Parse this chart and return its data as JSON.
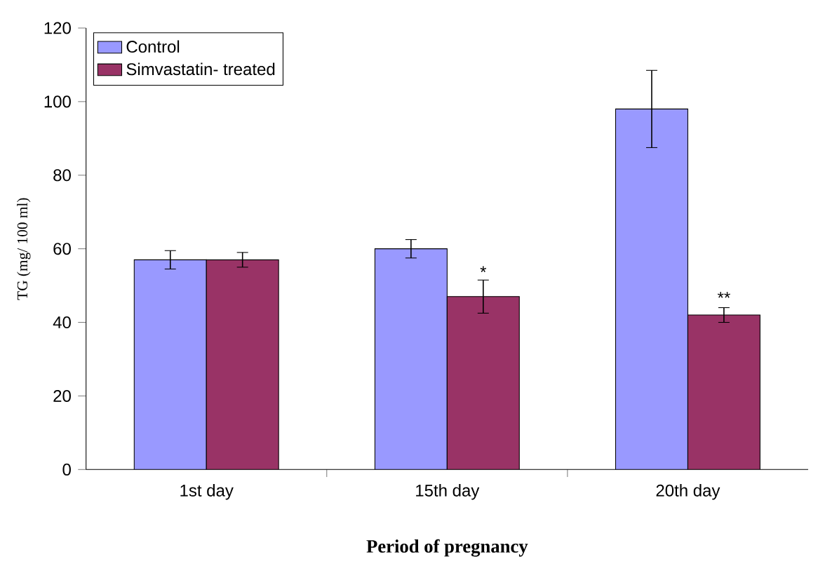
{
  "chart_data": {
    "type": "bar",
    "xlabel": "Period of pregnancy",
    "ylabel": "TG (mg/ 100 ml)",
    "categories": [
      "1st day",
      "15th day",
      "20th day"
    ],
    "series": [
      {
        "name": "Control",
        "color": "#9999ff",
        "values": [
          57,
          60,
          98
        ],
        "errors": [
          2.5,
          2.5,
          10.5
        ]
      },
      {
        "name": "Simvastatin- treated",
        "color": "#993366",
        "values": [
          57,
          47,
          42
        ],
        "errors": [
          2,
          4.5,
          2
        ]
      }
    ],
    "ylim": [
      0,
      120
    ],
    "yticks": [
      0,
      20,
      40,
      60,
      80,
      100,
      120
    ],
    "legend": "top left",
    "grid": false,
    "annotations": [
      {
        "text": "*",
        "x": "15th day",
        "y": 53
      },
      {
        "text": "**",
        "x": "20th day",
        "y": 46
      }
    ]
  }
}
